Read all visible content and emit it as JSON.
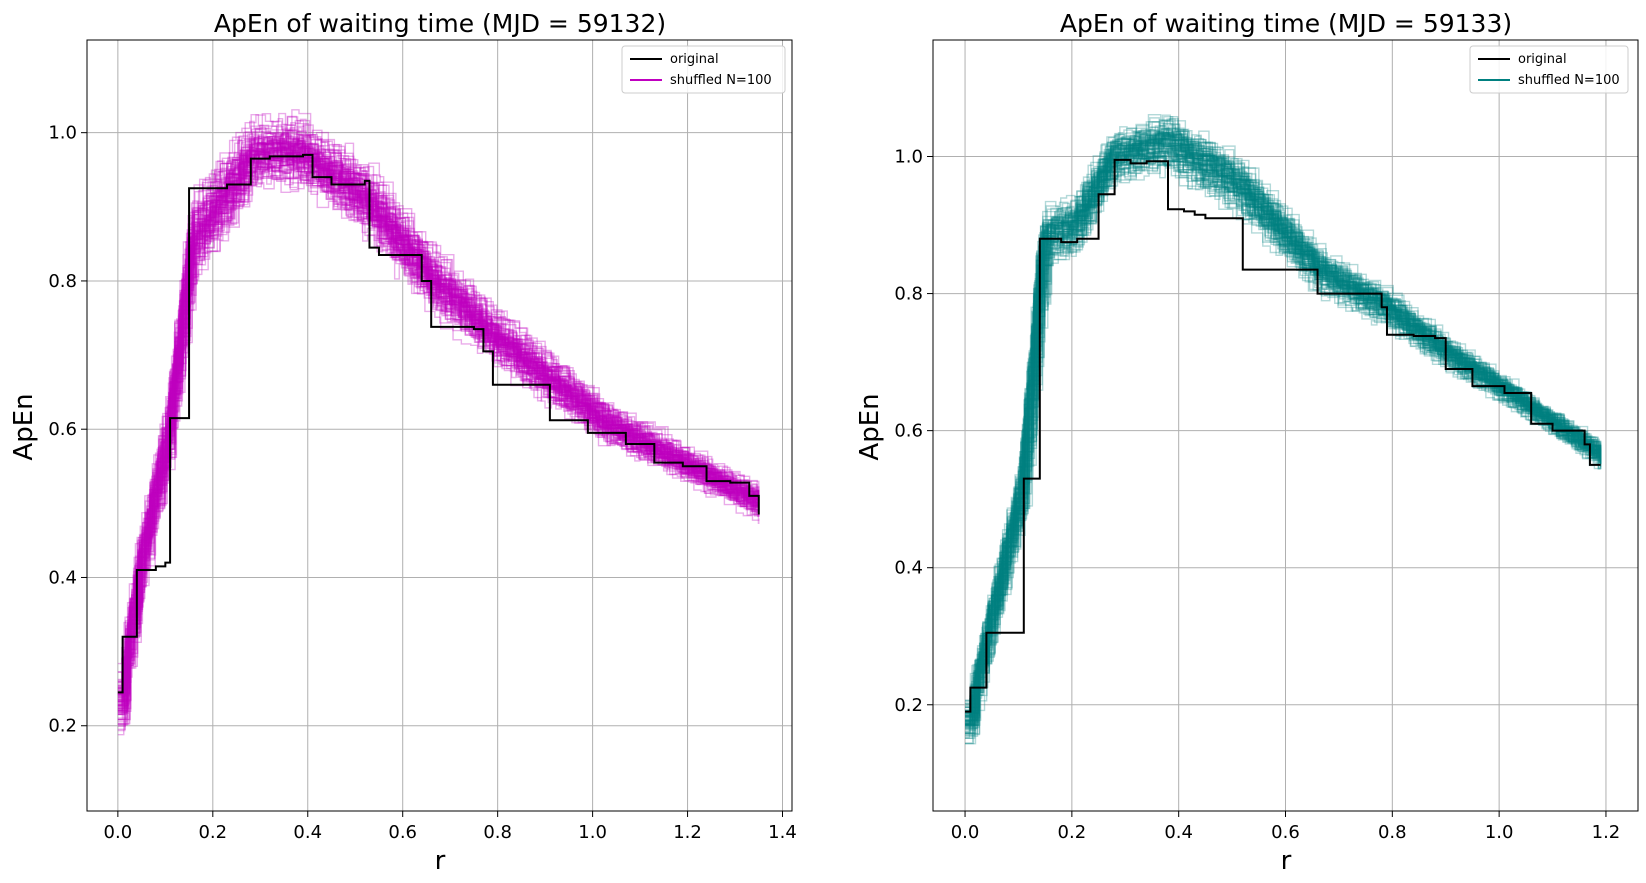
{
  "chart_data": [
    {
      "type": "line",
      "title": "ApEn of waiting time (MJD = 59132)",
      "xlabel": "r",
      "ylabel": "ApEn",
      "xlim": [
        -0.065,
        1.42
      ],
      "ylim": [
        0.085,
        1.125
      ],
      "xticks": [
        0.0,
        0.2,
        0.4,
        0.6,
        0.8,
        1.0,
        1.2,
        1.4
      ],
      "xtick_labels": [
        "0.0",
        "0.2",
        "0.4",
        "0.6",
        "0.8",
        "1.0",
        "1.2",
        "1.4"
      ],
      "yticks": [
        0.2,
        0.4,
        0.6,
        0.8,
        1.0
      ],
      "ytick_labels": [
        "0.2",
        "0.4",
        "0.6",
        "0.8",
        "1.0"
      ],
      "grid": true,
      "legend_position": "top-right",
      "r_max": 1.35,
      "series": [
        {
          "name": "original",
          "color": "#000000",
          "x": [
            0.0,
            0.01,
            0.03,
            0.04,
            0.06,
            0.08,
            0.1,
            0.11,
            0.135,
            0.15,
            0.17,
            0.2,
            0.23,
            0.26,
            0.28,
            0.32,
            0.39,
            0.41,
            0.45,
            0.5,
            0.52,
            0.53,
            0.55,
            0.62,
            0.64,
            0.66,
            0.75,
            0.77,
            0.79,
            0.8,
            0.9,
            0.91,
            0.95,
            0.99,
            1.03,
            1.07,
            1.13,
            1.19,
            1.24,
            1.29,
            1.33,
            1.35
          ],
          "y": [
            0.245,
            0.32,
            0.32,
            0.41,
            0.41,
            0.415,
            0.42,
            0.615,
            0.615,
            0.925,
            0.925,
            0.925,
            0.93,
            0.93,
            0.965,
            0.968,
            0.97,
            0.94,
            0.93,
            0.93,
            0.935,
            0.845,
            0.835,
            0.835,
            0.8,
            0.738,
            0.735,
            0.705,
            0.66,
            0.66,
            0.66,
            0.612,
            0.612,
            0.595,
            0.595,
            0.58,
            0.555,
            0.55,
            0.53,
            0.528,
            0.51,
            0.485
          ]
        },
        {
          "name": "shuffled N=100",
          "color": "#c000c0",
          "count": 100,
          "opacity": 0.33,
          "x": [
            0.0,
            0.02,
            0.04,
            0.1,
            0.15,
            0.2,
            0.28,
            0.38,
            0.52,
            0.66,
            0.8,
            0.92,
            1.02,
            1.2,
            1.35
          ],
          "y": [
            0.235,
            0.33,
            0.42,
            0.6,
            0.86,
            0.9,
            0.975,
            0.975,
            0.91,
            0.8,
            0.72,
            0.66,
            0.61,
            0.55,
            0.5
          ],
          "spread": [
            0.05,
            0.04,
            0.04,
            0.04,
            0.06,
            0.06,
            0.05,
            0.05,
            0.05,
            0.045,
            0.04,
            0.035,
            0.03,
            0.025,
            0.025
          ]
        }
      ]
    },
    {
      "type": "line",
      "title": "ApEn of waiting time (MJD = 59133)",
      "xlabel": "r",
      "ylabel": "ApEn",
      "xlim": [
        -0.06,
        1.26
      ],
      "ylim": [
        0.045,
        1.17
      ],
      "xticks": [
        0.0,
        0.2,
        0.4,
        0.6,
        0.8,
        1.0,
        1.2
      ],
      "xtick_labels": [
        "0.0",
        "0.2",
        "0.4",
        "0.6",
        "0.8",
        "1.0",
        "1.2"
      ],
      "yticks": [
        0.2,
        0.4,
        0.6,
        0.8,
        1.0
      ],
      "ytick_labels": [
        "0.2",
        "0.4",
        "0.6",
        "0.8",
        "1.0"
      ],
      "grid": true,
      "legend_position": "top-right",
      "r_max": 1.19,
      "series": [
        {
          "name": "original",
          "color": "#000000",
          "x": [
            0.0,
            0.01,
            0.03,
            0.04,
            0.06,
            0.08,
            0.1,
            0.11,
            0.13,
            0.14,
            0.16,
            0.18,
            0.21,
            0.24,
            0.25,
            0.27,
            0.28,
            0.29,
            0.31,
            0.34,
            0.37,
            0.38,
            0.41,
            0.43,
            0.45,
            0.48,
            0.51,
            0.52,
            0.57,
            0.62,
            0.64,
            0.66,
            0.7,
            0.75,
            0.78,
            0.79,
            0.84,
            0.88,
            0.9,
            0.92,
            0.95,
            0.99,
            1.01,
            1.03,
            1.06,
            1.1,
            1.14,
            1.16,
            1.17,
            1.19
          ],
          "y": [
            0.19,
            0.225,
            0.225,
            0.305,
            0.305,
            0.305,
            0.305,
            0.53,
            0.53,
            0.88,
            0.88,
            0.875,
            0.88,
            0.88,
            0.945,
            0.945,
            0.995,
            0.995,
            0.99,
            0.993,
            0.993,
            0.923,
            0.92,
            0.915,
            0.91,
            0.91,
            0.91,
            0.835,
            0.835,
            0.835,
            0.835,
            0.8,
            0.8,
            0.8,
            0.78,
            0.74,
            0.738,
            0.735,
            0.69,
            0.69,
            0.665,
            0.665,
            0.655,
            0.655,
            0.61,
            0.6,
            0.6,
            0.58,
            0.55,
            0.55
          ]
        },
        {
          "name": "shuffled N=100",
          "color": "#008080",
          "count": 100,
          "opacity": 0.3,
          "x": [
            0.0,
            0.02,
            0.04,
            0.1,
            0.14,
            0.2,
            0.27,
            0.37,
            0.5,
            0.66,
            0.78,
            0.9,
            1.02,
            1.19
          ],
          "y": [
            0.175,
            0.25,
            0.32,
            0.52,
            0.88,
            0.9,
            1.0,
            1.02,
            0.96,
            0.83,
            0.78,
            0.71,
            0.65,
            0.56
          ],
          "spread": [
            0.035,
            0.03,
            0.035,
            0.04,
            0.05,
            0.045,
            0.04,
            0.045,
            0.045,
            0.035,
            0.03,
            0.025,
            0.02,
            0.02
          ]
        }
      ]
    }
  ]
}
